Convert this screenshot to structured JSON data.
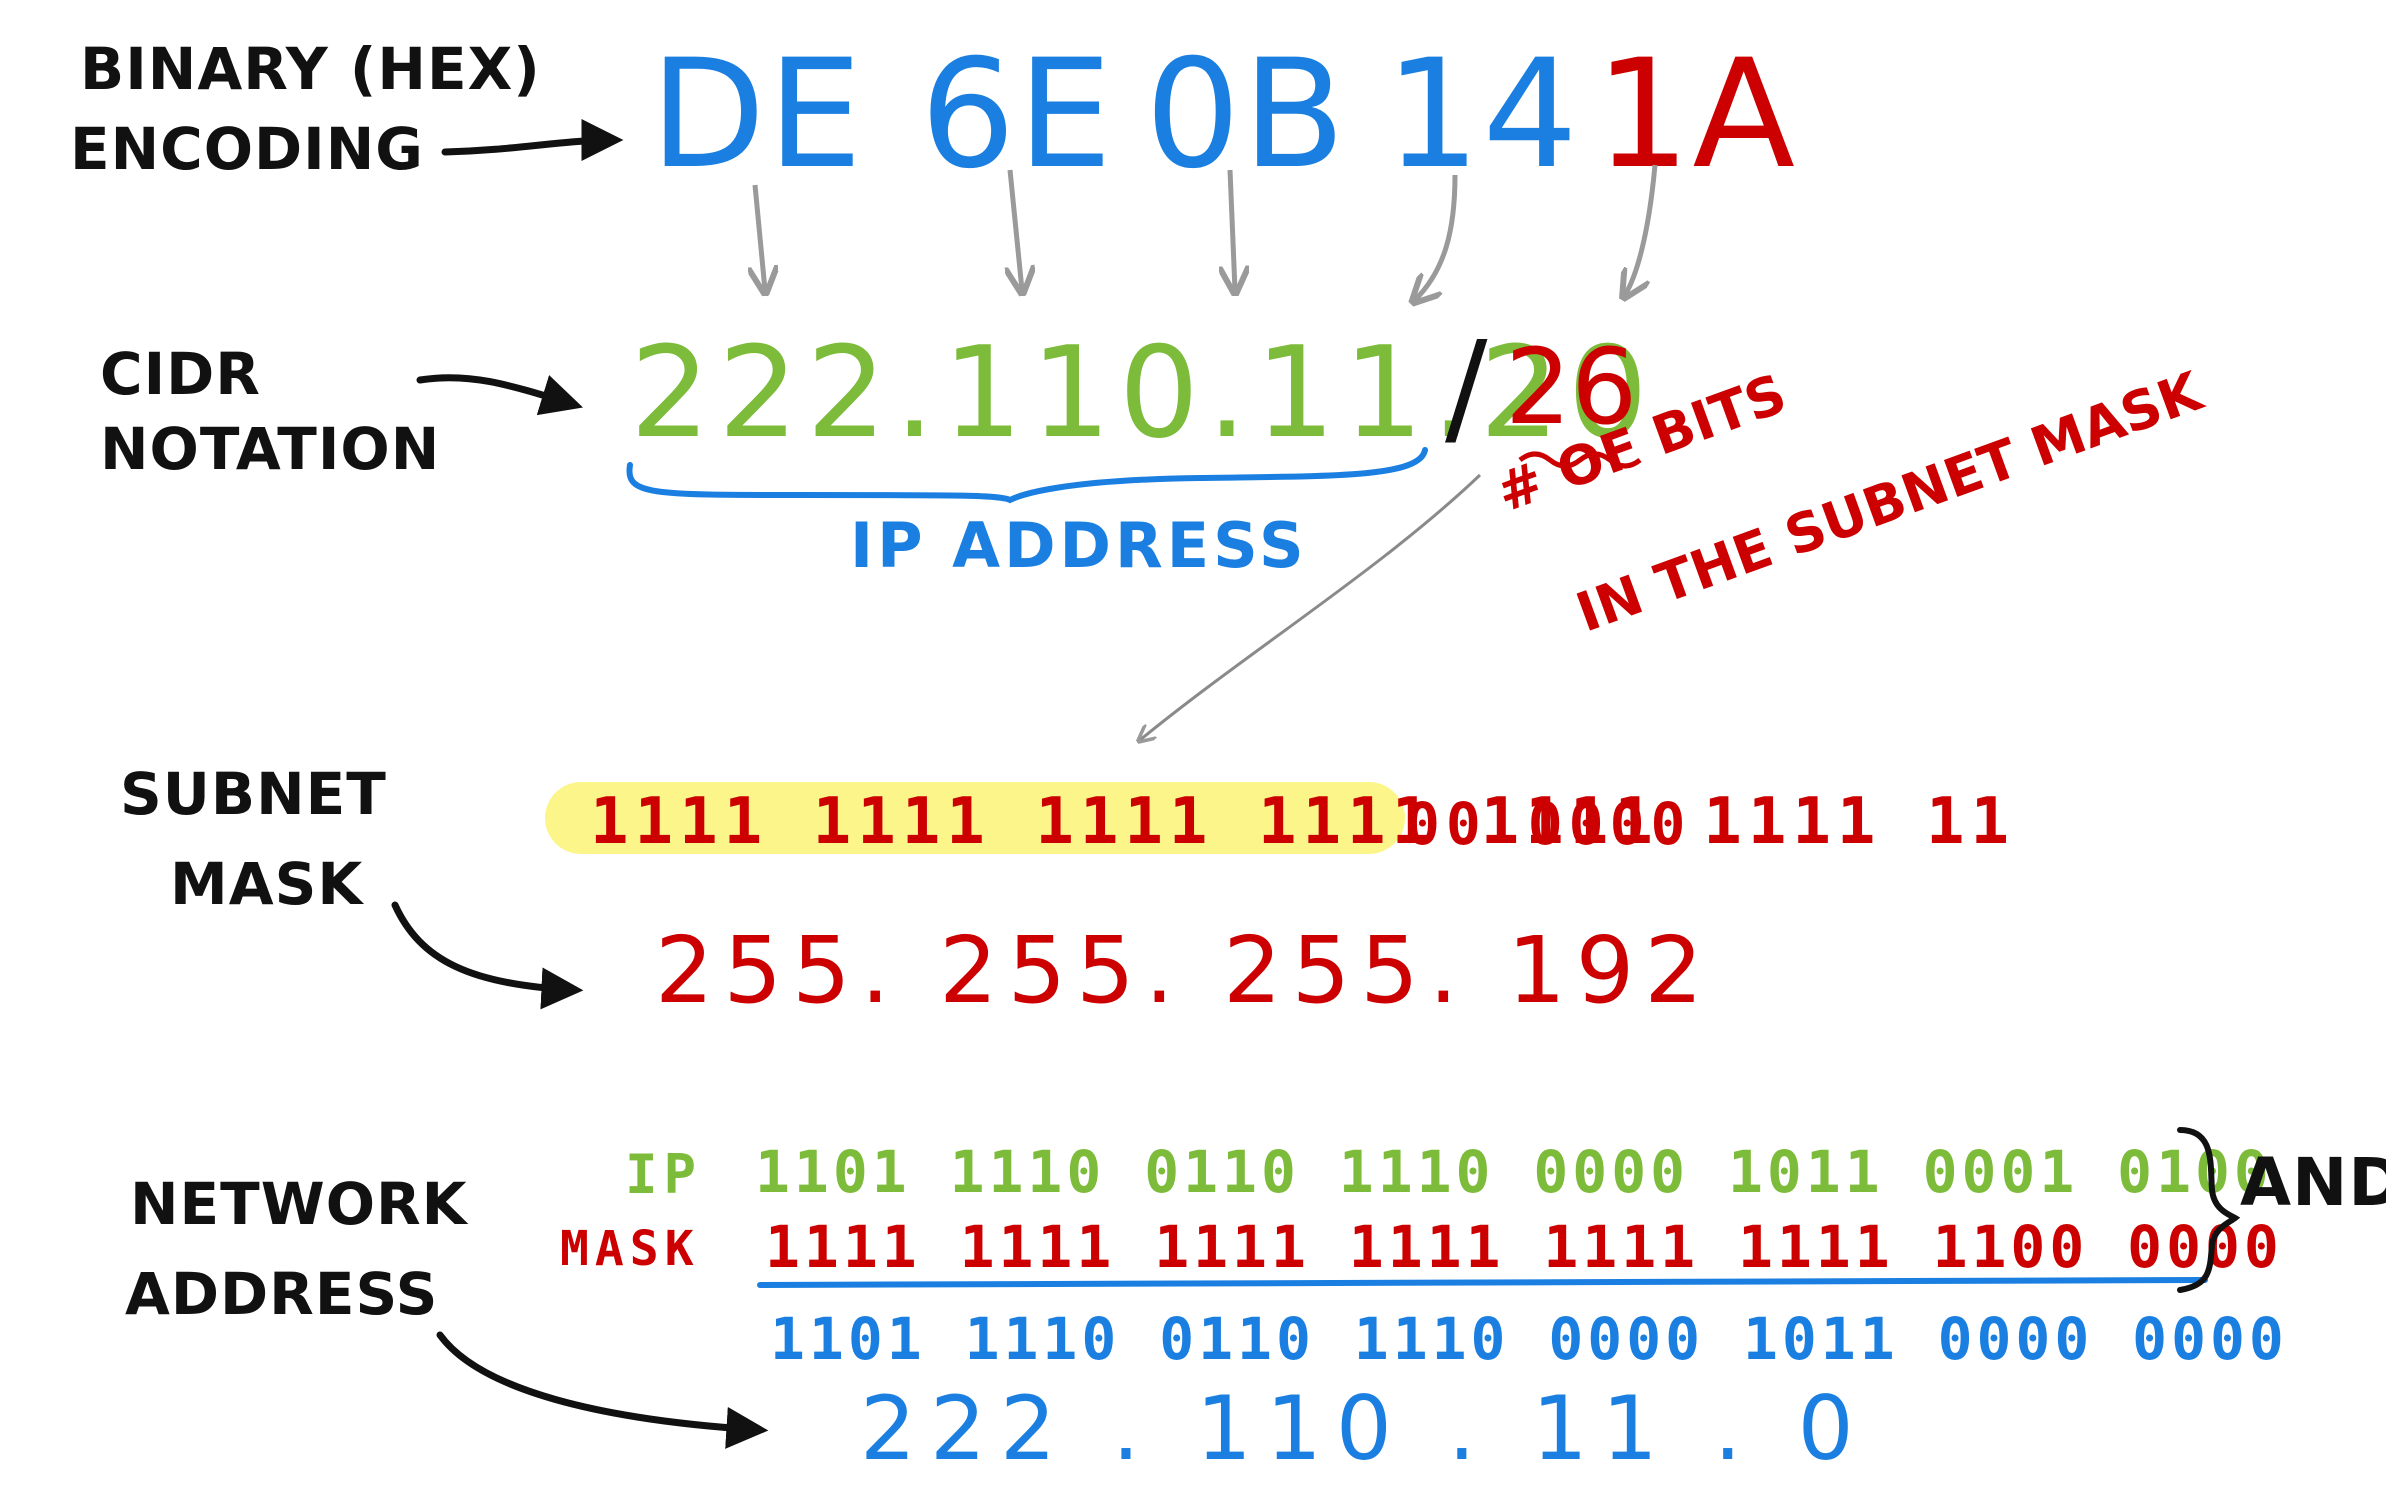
{
  "colors": {
    "black": "#111111",
    "blue": "#1a7fe0",
    "red": "#cc0000",
    "green": "#7dbb3a",
    "gray": "#9a9a9a",
    "highlight": "#fbf58a"
  },
  "labels": {
    "binary_hex": "BINARY (HEX)",
    "encoding": "ENCODING",
    "cidr": "CIDR",
    "notation": "NOTATION",
    "subnet": "SUBNET",
    "mask": "MASK",
    "network": "NETWORK",
    "address": "ADDRESS"
  },
  "hex_bytes": [
    "DE",
    "6E",
    "0B",
    "14"
  ],
  "hex_mask_byte": "1A",
  "cidr": {
    "ip": "222.110.11.20",
    "slash": "/",
    "prefix": "26",
    "ip_caption": "IP ADDRESS",
    "prefix_note_1": "# OF BITS",
    "prefix_note_2": "IN THE SUBNET MASK"
  },
  "subnet_mask": {
    "binary_ones": "1111 1111 1111 1111 1111 1111 11",
    "binary_zeros": "00 0000",
    "decimal": "255. 255. 255. 192"
  },
  "network_calc": {
    "ip_label": "IP",
    "ip_bits": "1101 1110 0110 1110 0000 1011 0001 0100",
    "mask_label": "MASK",
    "mask_bits": "1111 1111 1111 1111 1111 1111 1100 0000",
    "and_label": "AND",
    "result_bits": "1101 1110 0110 1110 0000 1011 0000 0000",
    "result_decimal": "222 . 110 . 11 . 0"
  }
}
